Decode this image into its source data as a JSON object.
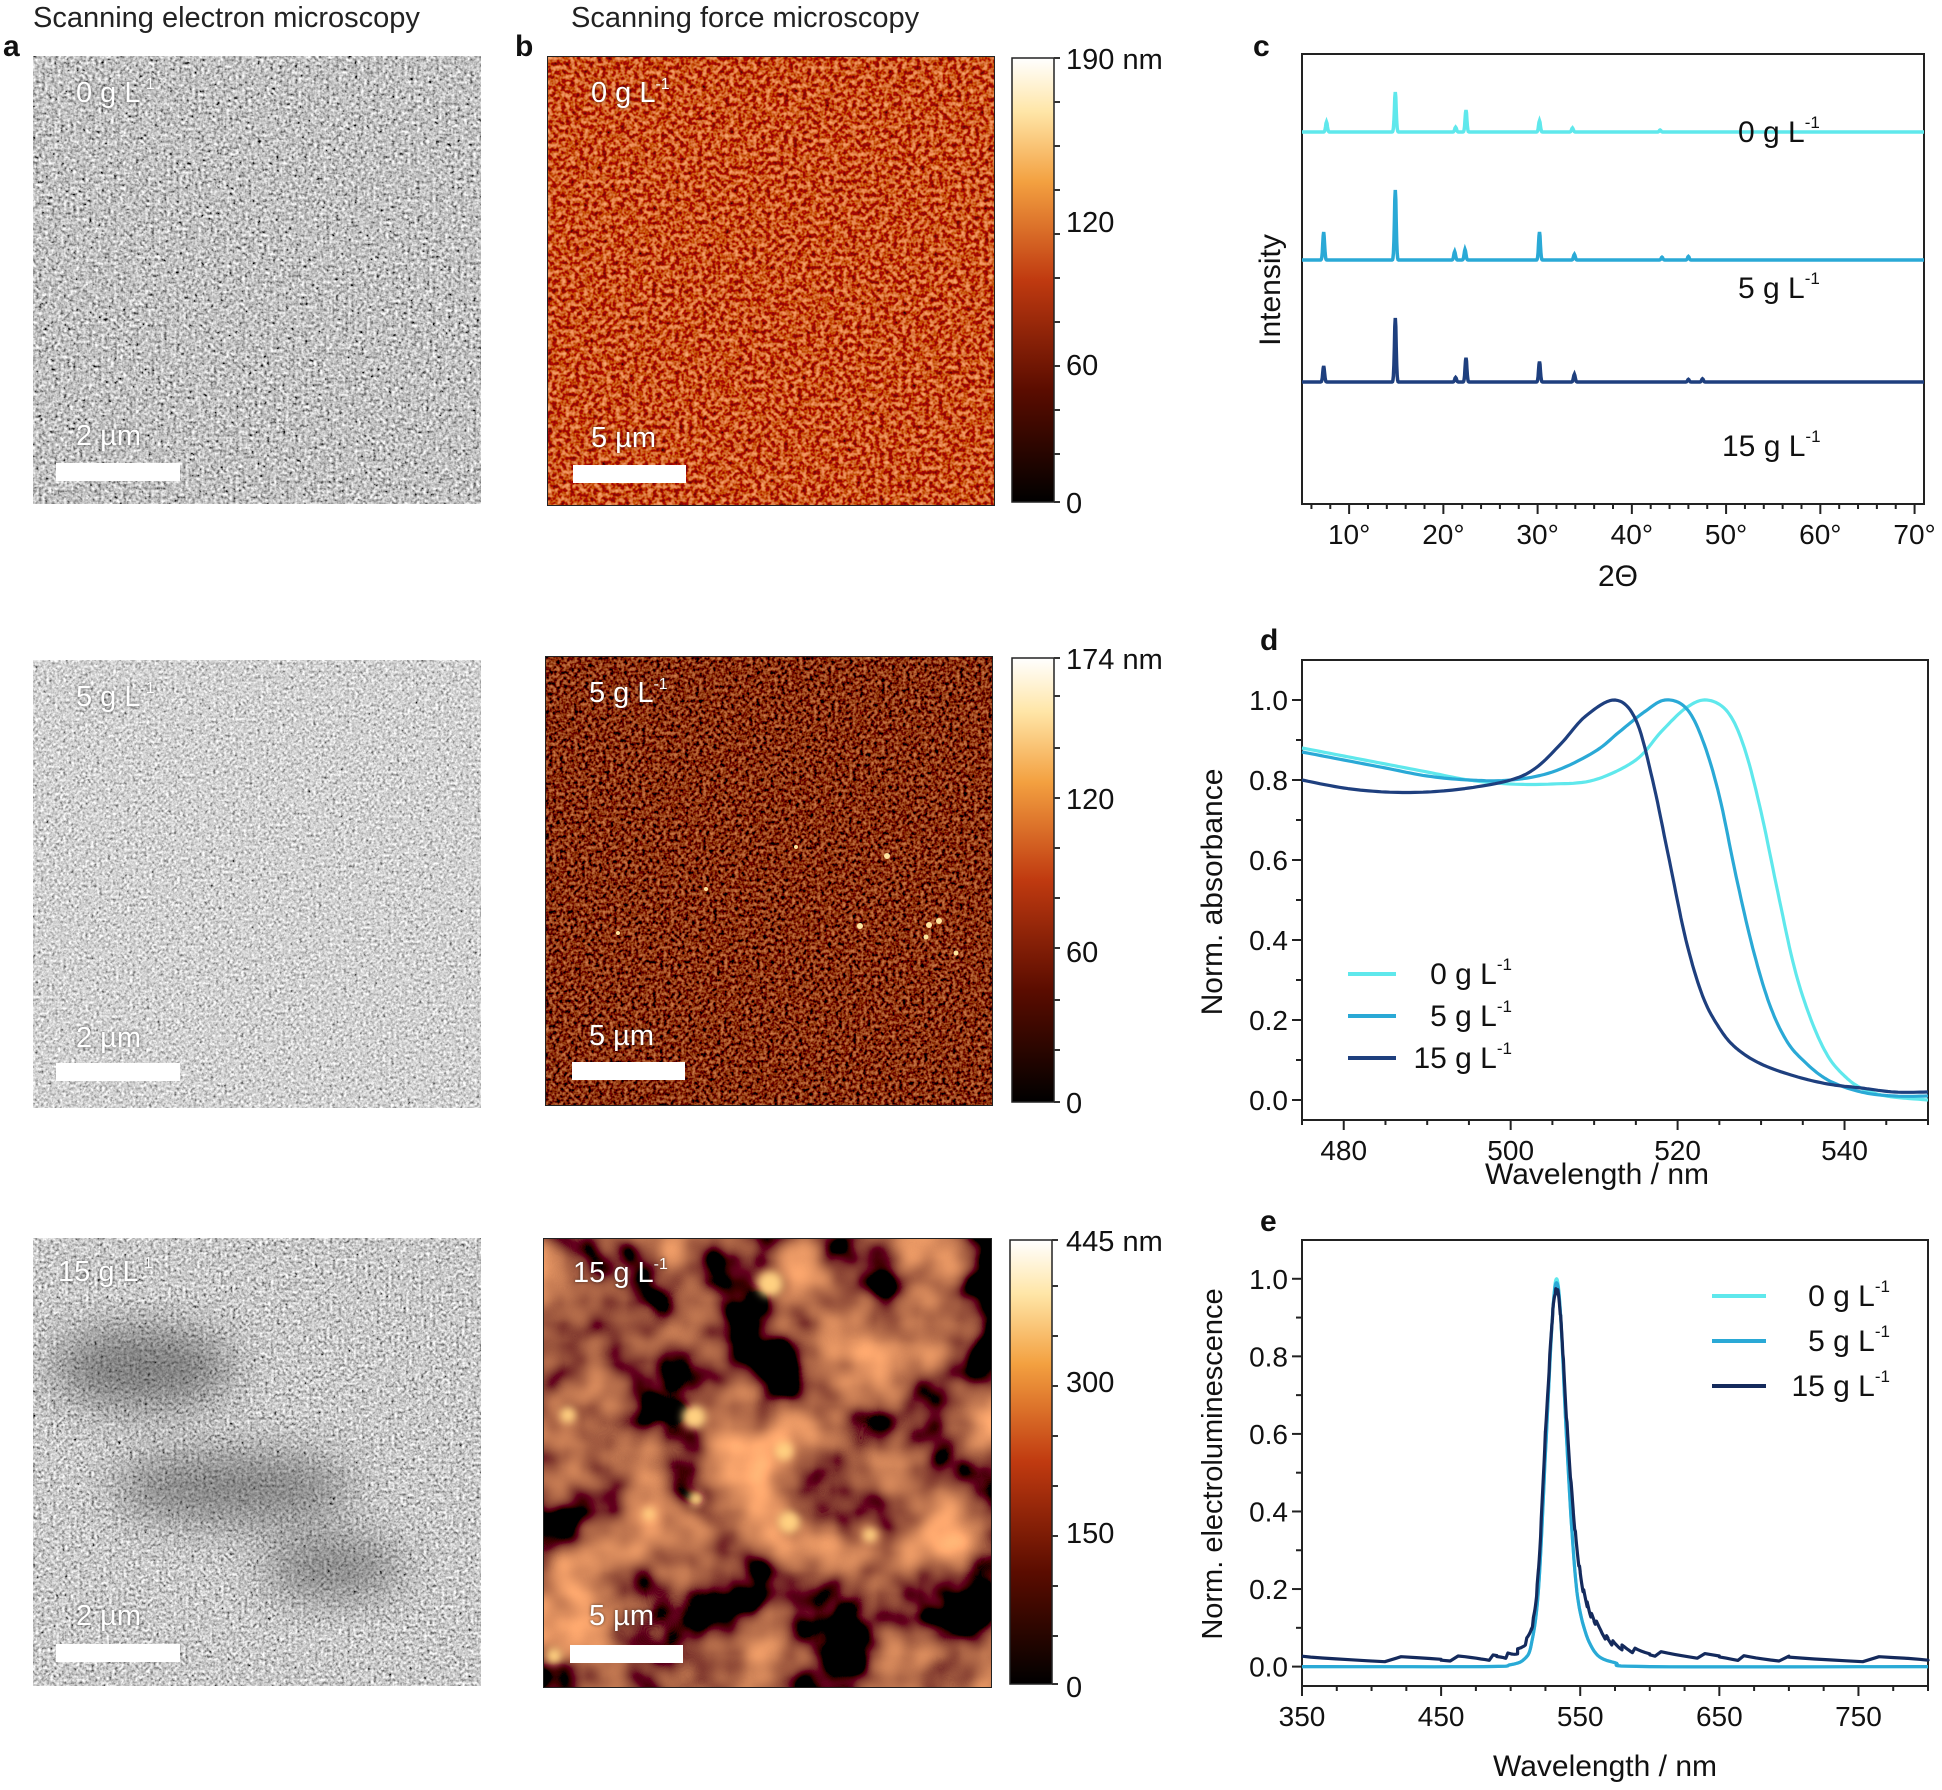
{
  "headers": {
    "sem": "Scanning electron microscopy",
    "sfm": "Scanning force microscopy"
  },
  "panel_letters": {
    "a": "a",
    "b": "b",
    "c": "c",
    "d": "d",
    "e": "e"
  },
  "sem_panels": [
    {
      "conc_value": "0 g L",
      "conc_exp": "-1",
      "scale": "2 µm"
    },
    {
      "conc_value": "5 g L",
      "conc_exp": "-1",
      "scale": "2 µm"
    },
    {
      "conc_value": "15 g L",
      "conc_exp": "-1",
      "scale": "2 µm"
    }
  ],
  "sfm_panels": [
    {
      "conc_value": "0 g L",
      "conc_exp": "-1",
      "scale": "5 µm",
      "colorbar": {
        "max": "190 nm",
        "ticks": [
          "120",
          "60",
          "0"
        ]
      }
    },
    {
      "conc_value": "5 g L",
      "conc_exp": "-1",
      "scale": "5 µm",
      "colorbar": {
        "max": "174 nm",
        "ticks": [
          "120",
          "60",
          "0"
        ]
      }
    },
    {
      "conc_value": "15 g L",
      "conc_exp": "-1",
      "scale": "5 µm",
      "colorbar": {
        "max": "445 nm",
        "ticks": [
          "300",
          "150",
          "0"
        ]
      }
    }
  ],
  "legend_labels": [
    "0 g L",
    "5 g L",
    "15 g L"
  ],
  "legend_exp": "-1",
  "colors": {
    "c0": "#5fe8ec",
    "c5": "#2aa9d6",
    "c15": "#1e3f7e",
    "c15_el": "#142a5c"
  },
  "chart_data": [
    {
      "panel": "c",
      "type": "line",
      "xlabel": "2Θ",
      "ylabel": "Intensity",
      "xlim": [
        5,
        71
      ],
      "xticks": [
        "10°",
        "20°",
        "30°",
        "40°",
        "50°",
        "60°",
        "70°"
      ],
      "series": [
        {
          "name": "0 g L-1",
          "color": "#5fe8ec",
          "peaks": [
            [
              7.6,
              0.25
            ],
            [
              14.9,
              1.0
            ],
            [
              21.3,
              0.12
            ],
            [
              22.4,
              0.55
            ],
            [
              30.2,
              0.28
            ],
            [
              33.7,
              0.1
            ],
            [
              43.0,
              0.05
            ]
          ]
        },
        {
          "name": "5 g L-1",
          "color": "#2aa9d6",
          "peaks": [
            [
              7.3,
              0.4
            ],
            [
              14.9,
              1.0
            ],
            [
              21.2,
              0.12
            ],
            [
              22.3,
              0.15
            ],
            [
              30.2,
              0.4
            ],
            [
              33.9,
              0.08
            ],
            [
              43.2,
              0.04
            ],
            [
              46.0,
              0.05
            ]
          ]
        },
        {
          "name": "15 g L-1",
          "color": "#1e3f7e",
          "peaks": [
            [
              7.3,
              0.25
            ],
            [
              14.9,
              1.0
            ],
            [
              21.3,
              0.07
            ],
            [
              22.4,
              0.38
            ],
            [
              30.2,
              0.32
            ],
            [
              33.9,
              0.12
            ],
            [
              46.0,
              0.04
            ],
            [
              47.5,
              0.05
            ]
          ]
        }
      ]
    },
    {
      "panel": "d",
      "type": "line",
      "xlabel": "Wavelength / nm",
      "ylabel": "Norm. absorbance",
      "xlim": [
        475,
        550
      ],
      "ylim": [
        -0.05,
        1.1
      ],
      "xticks": [
        480,
        500,
        520,
        540
      ],
      "yticks": [
        "0.0",
        "0.2",
        "0.4",
        "0.6",
        "0.8",
        "1.0"
      ],
      "series": [
        {
          "name": "0 g L-1",
          "color": "#5fe8ec",
          "x": [
            475,
            480,
            485,
            490,
            495,
            500,
            505,
            510,
            515,
            518,
            521,
            523.5,
            526,
            528,
            530,
            532,
            534,
            536,
            538,
            540,
            542,
            545,
            550
          ],
          "y": [
            0.88,
            0.86,
            0.84,
            0.82,
            0.8,
            0.79,
            0.79,
            0.8,
            0.85,
            0.92,
            0.98,
            1.0,
            0.97,
            0.88,
            0.72,
            0.52,
            0.33,
            0.2,
            0.11,
            0.06,
            0.03,
            0.01,
            0.0
          ]
        },
        {
          "name": "5 g L-1",
          "color": "#2aa9d6",
          "x": [
            475,
            480,
            485,
            490,
            495,
            500,
            505,
            510,
            513,
            516,
            518.5,
            521,
            523,
            525,
            527,
            529,
            531,
            533,
            535,
            538,
            542,
            546,
            550
          ],
          "y": [
            0.87,
            0.85,
            0.83,
            0.81,
            0.8,
            0.8,
            0.82,
            0.87,
            0.92,
            0.97,
            1.0,
            0.98,
            0.9,
            0.76,
            0.56,
            0.38,
            0.24,
            0.15,
            0.1,
            0.05,
            0.02,
            0.01,
            0.01
          ]
        },
        {
          "name": "15 g L-1",
          "color": "#1e3f7e",
          "x": [
            475,
            480,
            485,
            490,
            495,
            500,
            503,
            506,
            509,
            512.5,
            515,
            517,
            519,
            521,
            523,
            525,
            527,
            530,
            534,
            538,
            542,
            546,
            550
          ],
          "y": [
            0.8,
            0.78,
            0.77,
            0.77,
            0.78,
            0.8,
            0.83,
            0.89,
            0.96,
            1.0,
            0.95,
            0.8,
            0.6,
            0.4,
            0.26,
            0.18,
            0.13,
            0.09,
            0.06,
            0.04,
            0.03,
            0.02,
            0.02
          ]
        }
      ]
    },
    {
      "panel": "e",
      "type": "line",
      "xlabel": "Wavelength / nm",
      "ylabel": "Norm. electroluminescence",
      "xlim": [
        350,
        800
      ],
      "ylim": [
        -0.05,
        1.1
      ],
      "xticks": [
        350,
        450,
        550,
        650,
        750
      ],
      "yticks": [
        "0.0",
        "0.2",
        "0.4",
        "0.6",
        "0.8",
        "1.0"
      ],
      "series": [
        {
          "name": "0 g L-1",
          "color": "#5fe8ec",
          "x": [
            350,
            480,
            500,
            510,
            515,
            520,
            525,
            530,
            533,
            536,
            540,
            545,
            550,
            560,
            575,
            600,
            800
          ],
          "y": [
            0.0,
            0.0,
            0.005,
            0.02,
            0.06,
            0.2,
            0.55,
            0.9,
            1.0,
            0.9,
            0.6,
            0.3,
            0.14,
            0.04,
            0.01,
            0.0,
            0.0
          ]
        },
        {
          "name": "5 g L-1",
          "color": "#2aa9d6",
          "x": [
            350,
            480,
            500,
            510,
            515,
            520,
            525,
            530,
            533,
            536,
            540,
            545,
            550,
            560,
            575,
            600,
            800
          ],
          "y": [
            0.0,
            0.0,
            0.005,
            0.02,
            0.06,
            0.2,
            0.55,
            0.9,
            0.99,
            0.9,
            0.6,
            0.3,
            0.14,
            0.04,
            0.01,
            0.0,
            0.0
          ]
        },
        {
          "name": "15 g L-1",
          "color": "#142a5c",
          "x": [
            350,
            450,
            490,
            505,
            515,
            520,
            525,
            530,
            533,
            536,
            540,
            545,
            550,
            555,
            560,
            570,
            580,
            600,
            650,
            700,
            800
          ],
          "y": [
            0.02,
            0.02,
            0.025,
            0.04,
            0.1,
            0.25,
            0.6,
            0.9,
            0.97,
            0.9,
            0.65,
            0.4,
            0.24,
            0.16,
            0.12,
            0.07,
            0.05,
            0.035,
            0.025,
            0.02,
            0.02
          ]
        }
      ]
    }
  ]
}
